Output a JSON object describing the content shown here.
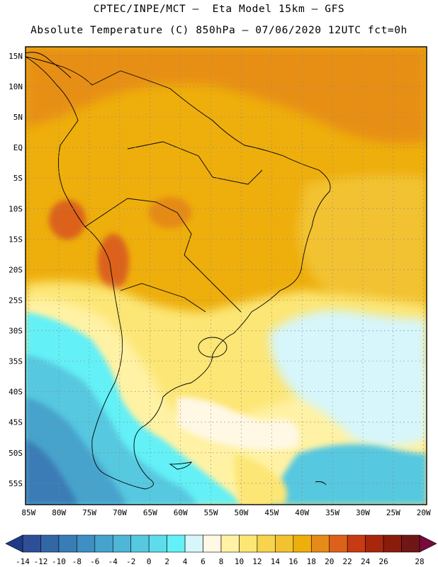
{
  "header": {
    "line1": "CPTEC/INPE/MCT –  Eta Model 15km – GFS",
    "line2": "Absolute Temperature (C) 850hPa – 07/06/2020 12UTC fct=0h"
  },
  "map": {
    "variable": "Absolute Temperature (C) 850hPa",
    "lat_labels": [
      "15N",
      "10N",
      "5N",
      "EQ",
      "5S",
      "10S",
      "15S",
      "20S",
      "25S",
      "30S",
      "35S",
      "40S",
      "45S",
      "50S",
      "55S"
    ],
    "lon_labels": [
      "85W",
      "80W",
      "75W",
      "70W",
      "65W",
      "60W",
      "55W",
      "50W",
      "45W",
      "40W",
      "35W",
      "30W",
      "25W",
      "20W"
    ],
    "lat_values": [
      15,
      10,
      5,
      0,
      -5,
      -10,
      -15,
      -20,
      -25,
      -30,
      -35,
      -40,
      -45,
      -50,
      -55
    ],
    "lon_values": [
      -85,
      -80,
      -75,
      -70,
      -65,
      -60,
      -55,
      -50,
      -45,
      -40,
      -35,
      -30,
      -25,
      -20
    ],
    "extent": {
      "lon_min": -85.5,
      "lon_max": -19.5,
      "lat_min": -58.5,
      "lat_max": 16.5
    }
  },
  "colorbar": {
    "labels": [
      "-14",
      "-12",
      "-10",
      "-8",
      "-6",
      "-4",
      "-2",
      "0",
      "2",
      "4",
      "6",
      "8",
      "10",
      "12",
      "14",
      "16",
      "18",
      "20",
      "22",
      "24",
      "26",
      "28"
    ],
    "colors": [
      "#2e4f98",
      "#3267a6",
      "#3a7cb6",
      "#3e8fc2",
      "#46a3cc",
      "#4eb6d6",
      "#56c8e0",
      "#5edcec",
      "#63f0f6",
      "#d6f6fc",
      "#fff8e4",
      "#fff2a4",
      "#fce674",
      "#f8d44c",
      "#f2c230",
      "#eeae0c",
      "#e68a18",
      "#dc621a",
      "#c83a12",
      "#a8260c",
      "#8a1c0c",
      "#701616"
    ],
    "low_arrow_color": "#1e3c86",
    "high_arrow_color": "#780a3c"
  }
}
